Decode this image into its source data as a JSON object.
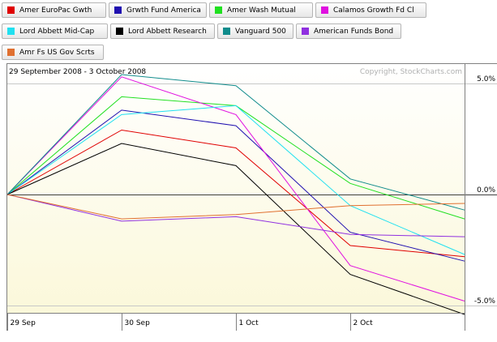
{
  "chart_data": {
    "type": "line",
    "date_range": "29 September 2008 - 3 October 2008",
    "copyright": "Copyright, StockCharts.com",
    "x_tick_labels": [
      "29 Sep",
      "30 Sep",
      "1 Oct",
      "2 Oct"
    ],
    "x": [
      "29 Sep",
      "30 Sep",
      "1 Oct",
      "2 Oct",
      "3 Oct"
    ],
    "y_ticks": [
      {
        "value": 5.0,
        "label": "5.0%"
      },
      {
        "value": 0.0,
        "label": "0.0%"
      },
      {
        "value": -5.0,
        "label": "-5.0%"
      }
    ],
    "ylim": [
      -5.4,
      5.3
    ],
    "units": "percent change",
    "series": [
      {
        "name": "Amer EuroPac Gwth",
        "color": "#e00000",
        "values": [
          0,
          2.9,
          2.1,
          -2.3,
          -2.8
        ]
      },
      {
        "name": "Grwth Fund America",
        "color": "#2010b0",
        "values": [
          0,
          3.8,
          3.1,
          -1.7,
          -3.0
        ]
      },
      {
        "name": "Amer Wash Mutual",
        "color": "#20e020",
        "values": [
          0,
          4.4,
          4.0,
          0.5,
          -1.1
        ]
      },
      {
        "name": "Calamos Growth Fd Cl",
        "color": "#e010e0",
        "values": [
          0,
          5.3,
          3.6,
          -3.2,
          -4.8
        ]
      },
      {
        "name": "Lord Abbett Mid-Cap",
        "color": "#20e0f0",
        "values": [
          0,
          3.6,
          4.0,
          -0.5,
          -2.7
        ]
      },
      {
        "name": "Lord Abbett Research",
        "color": "#000000",
        "values": [
          0,
          2.3,
          1.3,
          -3.6,
          -5.4
        ]
      },
      {
        "name": "Vanguard 500",
        "color": "#108c8c",
        "values": [
          0,
          5.4,
          4.9,
          0.7,
          -0.7
        ]
      },
      {
        "name": "American Funds Bond",
        "color": "#9030e0",
        "values": [
          0,
          -1.2,
          -1.0,
          -1.8,
          -1.9
        ]
      },
      {
        "name": "Amr Fs US Gov Scrts",
        "color": "#e07030",
        "values": [
          0,
          -1.1,
          -0.9,
          -0.5,
          -0.4
        ]
      }
    ],
    "grid": true,
    "legend": "top"
  }
}
